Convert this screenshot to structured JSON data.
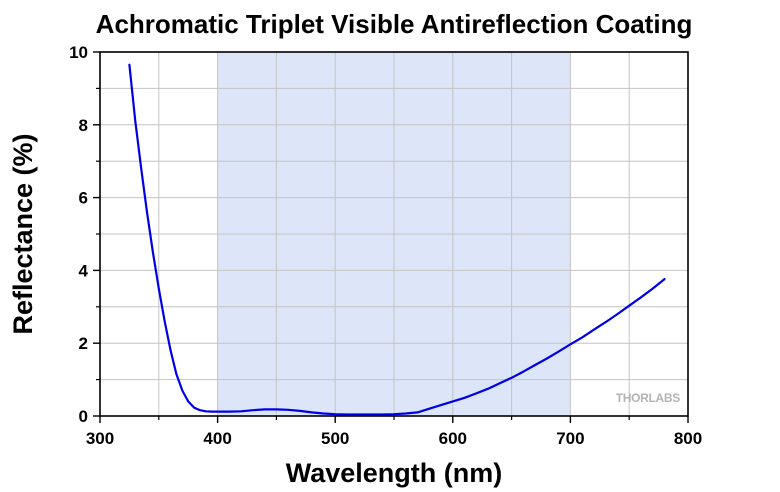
{
  "chart_data": {
    "type": "line",
    "title": "Achromatic Triplet Visible Antireflection Coating",
    "xlabel": "Wavelength (nm)",
    "ylabel": "Reflectance (%)",
    "xlim": [
      300,
      800
    ],
    "ylim": [
      0,
      10
    ],
    "xticks": [
      300,
      400,
      500,
      600,
      700,
      800
    ],
    "yticks": [
      0,
      2,
      4,
      6,
      8,
      10
    ],
    "grid": true,
    "highlight_band": {
      "x_start": 400,
      "x_end": 700,
      "color": "#dce6f8"
    },
    "series_color": "#0000e6",
    "watermark": "THORLABS",
    "series": [
      {
        "x": [
          325,
          330,
          335,
          340,
          345,
          350,
          355,
          360,
          365,
          370,
          375,
          380,
          385,
          390,
          395,
          400,
          410,
          420,
          430,
          440,
          450,
          460,
          470,
          480,
          490,
          500,
          510,
          520,
          530,
          540,
          550,
          560,
          570,
          580,
          590,
          600,
          610,
          620,
          630,
          640,
          650,
          660,
          670,
          680,
          690,
          700,
          710,
          720,
          730,
          740,
          750,
          760,
          770,
          780
        ],
        "y": [
          9.65,
          8.1,
          6.8,
          5.6,
          4.5,
          3.5,
          2.6,
          1.8,
          1.15,
          0.7,
          0.4,
          0.23,
          0.16,
          0.13,
          0.12,
          0.12,
          0.12,
          0.13,
          0.16,
          0.18,
          0.18,
          0.17,
          0.14,
          0.1,
          0.07,
          0.05,
          0.04,
          0.04,
          0.04,
          0.04,
          0.05,
          0.07,
          0.1,
          0.2,
          0.3,
          0.4,
          0.5,
          0.62,
          0.75,
          0.9,
          1.05,
          1.22,
          1.4,
          1.58,
          1.77,
          1.97,
          2.16,
          2.37,
          2.58,
          2.8,
          3.03,
          3.26,
          3.5,
          3.76
        ]
      }
    ]
  }
}
